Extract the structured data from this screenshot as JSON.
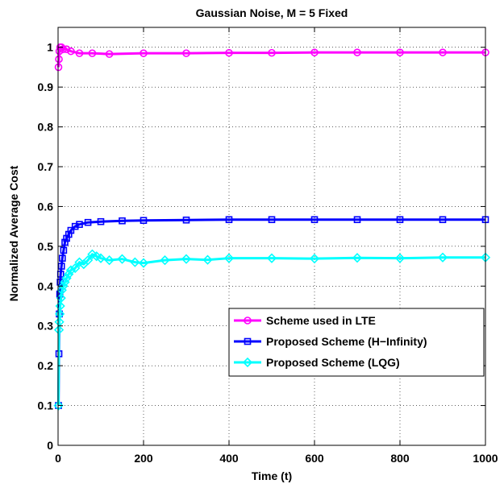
{
  "chart_data": {
    "type": "line",
    "title": "Gaussian Noise, M = 5 Fixed",
    "xlabel": "Time (t)",
    "ylabel": "Normalized Average Cost",
    "xlim": [
      0,
      1000
    ],
    "ylim": [
      0,
      1.05
    ],
    "xticks": [
      0,
      200,
      400,
      600,
      800,
      1000
    ],
    "yticks": [
      0,
      0.1,
      0.2,
      0.3,
      0.4,
      0.5,
      0.6,
      0.7,
      0.8,
      0.9,
      1
    ],
    "grid": true,
    "legend_position": "lower-right",
    "series": [
      {
        "name": "Scheme used in LTE",
        "color": "#ff00ff",
        "marker": "circle",
        "x": [
          1,
          2,
          3,
          5,
          8,
          12,
          20,
          30,
          50,
          80,
          120,
          200,
          300,
          400,
          500,
          600,
          700,
          800,
          900,
          1000
        ],
        "y": [
          0.95,
          0.97,
          0.99,
          1.0,
          1.0,
          0.995,
          0.995,
          0.99,
          0.985,
          0.985,
          0.983,
          0.985,
          0.985,
          0.986,
          0.986,
          0.987,
          0.987,
          0.987,
          0.987,
          0.987
        ]
      },
      {
        "name": "Proposed Scheme (H−Infinity)",
        "color": "#0000ff",
        "marker": "square",
        "x": [
          1,
          2,
          3,
          4,
          5,
          6,
          8,
          10,
          13,
          16,
          20,
          25,
          30,
          40,
          50,
          70,
          100,
          150,
          200,
          300,
          400,
          500,
          600,
          700,
          800,
          900,
          1000
        ],
        "y": [
          0.1,
          0.23,
          0.33,
          0.38,
          0.41,
          0.43,
          0.45,
          0.47,
          0.49,
          0.51,
          0.52,
          0.53,
          0.54,
          0.55,
          0.555,
          0.56,
          0.562,
          0.564,
          0.565,
          0.566,
          0.567,
          0.567,
          0.567,
          0.567,
          0.567,
          0.567,
          0.567
        ]
      },
      {
        "name": "Proposed Scheme (LQG)",
        "color": "#00ffff",
        "marker": "diamond",
        "x": [
          1,
          2,
          3,
          4,
          5,
          7,
          9,
          12,
          16,
          20,
          25,
          30,
          40,
          50,
          60,
          70,
          80,
          90,
          100,
          120,
          150,
          180,
          200,
          250,
          300,
          350,
          400,
          500,
          600,
          700,
          800,
          900,
          1000
        ],
        "y": [
          0.1,
          0.29,
          0.31,
          0.33,
          0.35,
          0.37,
          0.39,
          0.4,
          0.41,
          0.42,
          0.43,
          0.44,
          0.445,
          0.46,
          0.455,
          0.465,
          0.48,
          0.475,
          0.47,
          0.465,
          0.468,
          0.46,
          0.458,
          0.465,
          0.468,
          0.466,
          0.47,
          0.47,
          0.469,
          0.471,
          0.47,
          0.472,
          0.472
        ]
      }
    ]
  }
}
